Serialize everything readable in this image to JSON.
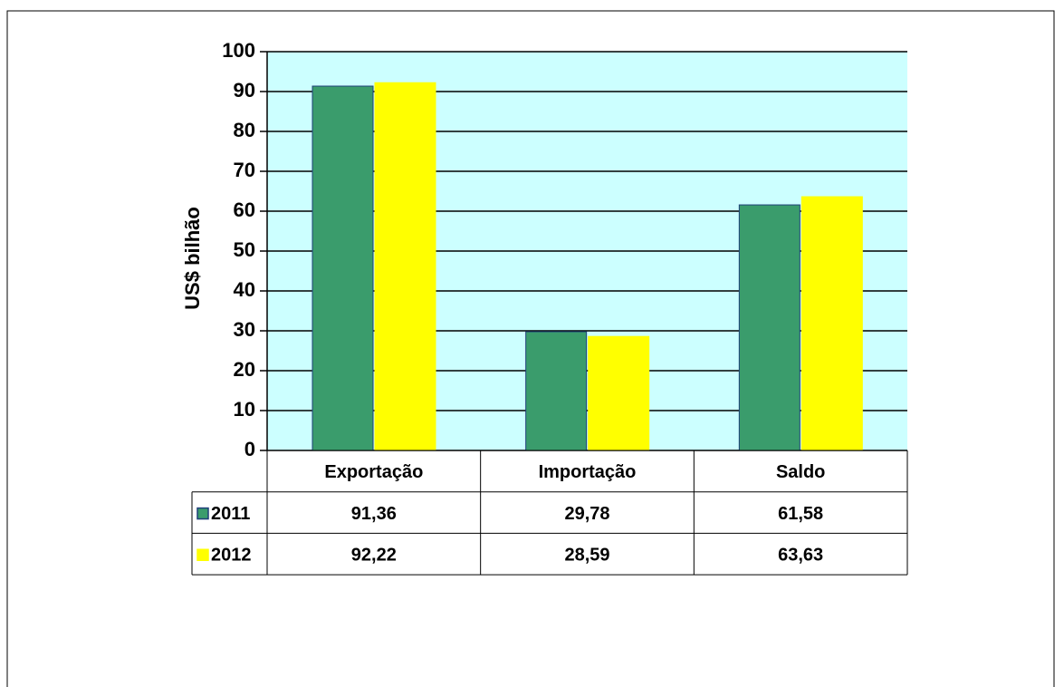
{
  "chart_data": {
    "type": "bar",
    "y_label": "US$ bilhão",
    "categories": [
      "Exportação",
      "Importação",
      "Saldo"
    ],
    "series": [
      {
        "name": "2011",
        "color": "#3a9c6c",
        "values": [
          91.36,
          29.78,
          61.58
        ],
        "value_labels": [
          "91,36",
          "29,78",
          "61,58"
        ]
      },
      {
        "name": "2012",
        "color": "#ffff00",
        "values": [
          92.22,
          28.59,
          63.63
        ],
        "value_labels": [
          "92,22",
          "28,59",
          "63,63"
        ]
      }
    ],
    "ylim": [
      0,
      100
    ],
    "yticks": [
      0,
      10,
      20,
      30,
      40,
      50,
      60,
      70,
      80,
      90,
      100
    ],
    "grid": true,
    "plot_background": "#ccffff"
  }
}
